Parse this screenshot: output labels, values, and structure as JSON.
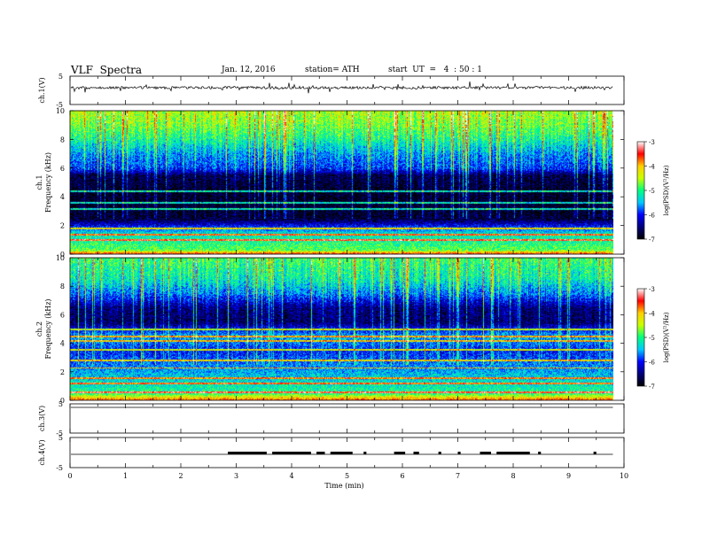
{
  "header": {
    "title": "VLF  Spectra",
    "date": "Jan. 12, 2016",
    "station": "station= ATH",
    "start_ut": "start  UT  =   4  : 50 : 1"
  },
  "panels": {
    "ch1_wave": {
      "ylabel": "ch.1(V)",
      "yticks": [
        "5",
        "-5"
      ]
    },
    "ch1_spec": {
      "ylabel_line1": "ch.1",
      "ylabel_line2": "Frequency (kHz)",
      "yticks": [
        "0",
        "2",
        "4",
        "6",
        "8",
        "10"
      ]
    },
    "ch2_spec": {
      "ylabel_line1": "ch.2",
      "ylabel_line2": "Frequency (kHz)",
      "yticks": [
        "0",
        "2",
        "4",
        "6",
        "8",
        "10"
      ]
    },
    "ch3_wave": {
      "ylabel": "ch.3(V)",
      "yticks": [
        "5",
        "-5"
      ]
    },
    "ch4_wave": {
      "ylabel": "ch.4(V)",
      "yticks": [
        "5",
        "-5"
      ]
    }
  },
  "colorbar": {
    "label": "log(PSD)(V²/Hz)",
    "ticks": [
      "-3",
      "-4",
      "-5",
      "-6",
      "-7"
    ],
    "stops": [
      "#000000",
      "#00007a",
      "#0000ff",
      "#00c8ff",
      "#00ff7f",
      "#c8ff00",
      "#ffd000",
      "#ff0000",
      "#ffffff"
    ]
  },
  "chart_data": {
    "type": "heatmap",
    "xlabel": "Time  (min)",
    "xticks": [
      "0",
      "1",
      "2",
      "3",
      "4",
      "5",
      "6",
      "7",
      "8",
      "9",
      "10"
    ],
    "xlim": [
      0,
      10
    ],
    "data_end_min": 9.8,
    "spectrogram_ylim_khz": [
      0,
      10
    ],
    "color_scale_log_psd": [
      -7,
      -3
    ],
    "ch1_freq_profile_log_psd": [
      {
        "khz": 0.0,
        "v": -3.2
      },
      {
        "khz": 0.3,
        "v": -4.8
      },
      {
        "khz": 0.8,
        "v": -5.0
      },
      {
        "khz": 1.5,
        "v": -5.3
      },
      {
        "khz": 2.5,
        "v": -6.8
      },
      {
        "khz": 4.0,
        "v": -6.9
      },
      {
        "khz": 5.5,
        "v": -6.7
      },
      {
        "khz": 6.0,
        "v": -5.9
      },
      {
        "khz": 7.0,
        "v": -5.6
      },
      {
        "khz": 8.0,
        "v": -5.1
      },
      {
        "khz": 9.0,
        "v": -4.7
      },
      {
        "khz": 10.0,
        "v": -4.5
      }
    ],
    "ch1_lines_khz": [
      1.0,
      1.4,
      1.8,
      3.2,
      3.6,
      4.4
    ],
    "ch2_freq_profile_log_psd": [
      {
        "khz": 0.0,
        "v": -3.5
      },
      {
        "khz": 0.5,
        "v": -5.0
      },
      {
        "khz": 1.0,
        "v": -5.2
      },
      {
        "khz": 2.0,
        "v": -5.5
      },
      {
        "khz": 3.5,
        "v": -6.0
      },
      {
        "khz": 4.5,
        "v": -5.5
      },
      {
        "khz": 5.5,
        "v": -6.6
      },
      {
        "khz": 6.5,
        "v": -6.5
      },
      {
        "khz": 7.5,
        "v": -5.7
      },
      {
        "khz": 8.5,
        "v": -5.2
      },
      {
        "khz": 10.0,
        "v": -4.9
      }
    ],
    "ch2_lines_khz": [
      0.6,
      1.2,
      1.6,
      2.3,
      2.8,
      3.6,
      4.2,
      4.5,
      5.0
    ],
    "ch4_burst_intervals_min": [
      [
        2.85,
        3.55
      ],
      [
        3.65,
        4.35
      ],
      [
        4.45,
        4.6
      ],
      [
        4.7,
        5.1
      ],
      [
        5.3,
        5.35
      ],
      [
        5.85,
        6.05
      ],
      [
        6.2,
        6.3
      ],
      [
        6.65,
        6.7
      ],
      [
        7.0,
        7.05
      ],
      [
        7.4,
        7.6
      ],
      [
        7.7,
        8.3
      ],
      [
        8.45,
        8.5
      ],
      [
        9.45,
        9.5
      ]
    ]
  }
}
